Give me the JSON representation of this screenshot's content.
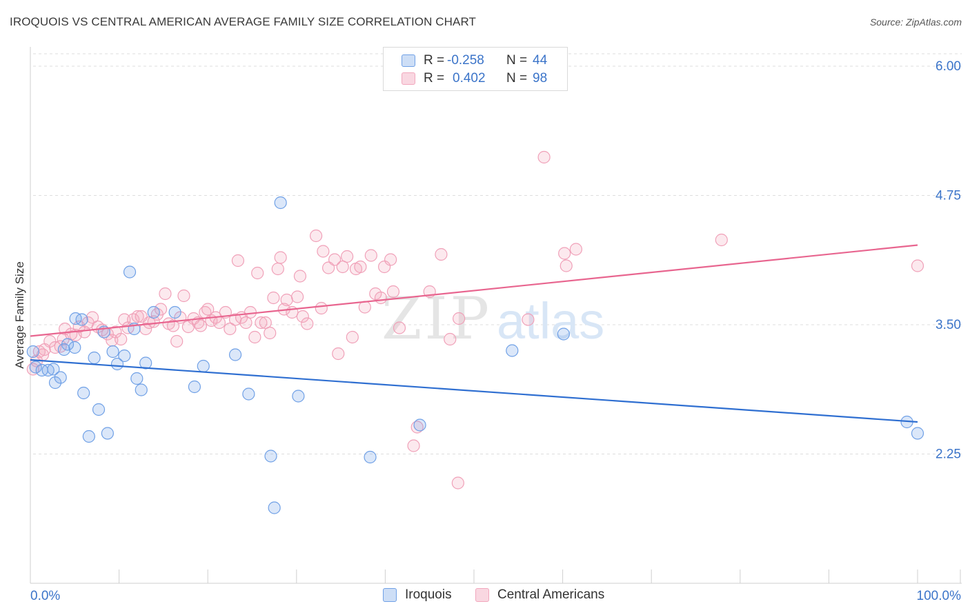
{
  "title": "IROQUOIS VS CENTRAL AMERICAN AVERAGE FAMILY SIZE CORRELATION CHART",
  "source": "Source: ZipAtlas.com",
  "watermark": {
    "zip": "ZIP",
    "atlas": "atlas"
  },
  "legend": {
    "r_label": "R =",
    "n_label": "N =",
    "rows": [
      {
        "r": "-0.258",
        "n": "44",
        "color": "#6fa0e6"
      },
      {
        "r": "0.402",
        "n": "98",
        "color": "#f2a7bd"
      }
    ]
  },
  "bottom_legend": [
    {
      "label": "Iroquois",
      "color": "#6fa0e6"
    },
    {
      "label": "Central Americans",
      "color": "#f2a7bd"
    }
  ],
  "chart_data": {
    "type": "scatter",
    "title": "IROQUOIS VS CENTRAL AMERICAN AVERAGE FAMILY SIZE CORRELATION CHART",
    "xlabel": "",
    "ylabel": "Average Family Size",
    "x_tick_labels": [
      "0.0%",
      "100.0%"
    ],
    "y_tick_labels": [
      "6.00",
      "4.75",
      "3.50",
      "2.25"
    ],
    "y_ticks": [
      6.0,
      4.75,
      3.5,
      2.25
    ],
    "xlim": [
      0,
      100
    ],
    "ylim": [
      1.0,
      6.12
    ],
    "grid": "horizontal dashed",
    "legend_position": "top-center",
    "series": [
      {
        "name": "Iroquois",
        "color": "#6fa0e6",
        "trend": {
          "x": [
            0,
            100
          ],
          "y": [
            3.16,
            2.56
          ]
        },
        "points": [
          {
            "x": 0.3,
            "y": 3.24
          },
          {
            "x": 0.6,
            "y": 3.09
          },
          {
            "x": 1.3,
            "y": 3.06
          },
          {
            "x": 2.0,
            "y": 3.06
          },
          {
            "x": 2.6,
            "y": 3.07
          },
          {
            "x": 2.8,
            "y": 2.94
          },
          {
            "x": 3.4,
            "y": 2.99
          },
          {
            "x": 3.8,
            "y": 3.26
          },
          {
            "x": 4.2,
            "y": 3.31
          },
          {
            "x": 5.0,
            "y": 3.28
          },
          {
            "x": 5.1,
            "y": 3.56
          },
          {
            "x": 5.8,
            "y": 3.55
          },
          {
            "x": 6.0,
            "y": 2.84
          },
          {
            "x": 6.6,
            "y": 2.42
          },
          {
            "x": 7.2,
            "y": 3.18
          },
          {
            "x": 7.7,
            "y": 2.68
          },
          {
            "x": 8.3,
            "y": 3.43
          },
          {
            "x": 8.7,
            "y": 2.45
          },
          {
            "x": 9.3,
            "y": 3.24
          },
          {
            "x": 9.8,
            "y": 3.12
          },
          {
            "x": 10.6,
            "y": 3.2
          },
          {
            "x": 11.2,
            "y": 4.01
          },
          {
            "x": 11.7,
            "y": 3.46
          },
          {
            "x": 12.0,
            "y": 2.98
          },
          {
            "x": 12.5,
            "y": 2.87
          },
          {
            "x": 13.0,
            "y": 3.13
          },
          {
            "x": 13.9,
            "y": 3.62
          },
          {
            "x": 16.3,
            "y": 3.62
          },
          {
            "x": 18.5,
            "y": 2.9
          },
          {
            "x": 19.5,
            "y": 3.1
          },
          {
            "x": 23.1,
            "y": 3.21
          },
          {
            "x": 24.6,
            "y": 2.83
          },
          {
            "x": 27.1,
            "y": 2.23
          },
          {
            "x": 27.5,
            "y": 1.73
          },
          {
            "x": 28.2,
            "y": 4.68
          },
          {
            "x": 30.2,
            "y": 2.81
          },
          {
            "x": 38.3,
            "y": 2.22
          },
          {
            "x": 43.9,
            "y": 2.53
          },
          {
            "x": 54.3,
            "y": 3.25
          },
          {
            "x": 60.1,
            "y": 3.41
          },
          {
            "x": 98.8,
            "y": 2.56
          },
          {
            "x": 100.0,
            "y": 2.45
          }
        ]
      },
      {
        "name": "Central Americans",
        "color": "#f2a7bd",
        "trend": {
          "x": [
            0,
            100
          ],
          "y": [
            3.39,
            4.27
          ]
        },
        "points": [
          {
            "x": 0.3,
            "y": 3.07
          },
          {
            "x": 0.7,
            "y": 3.15
          },
          {
            "x": 1.0,
            "y": 3.24
          },
          {
            "x": 1.4,
            "y": 3.21
          },
          {
            "x": 1.6,
            "y": 3.26
          },
          {
            "x": 2.2,
            "y": 3.34
          },
          {
            "x": 2.8,
            "y": 3.28
          },
          {
            "x": 3.4,
            "y": 3.29
          },
          {
            "x": 3.7,
            "y": 3.36
          },
          {
            "x": 3.9,
            "y": 3.46
          },
          {
            "x": 4.6,
            "y": 3.41
          },
          {
            "x": 5.1,
            "y": 3.4
          },
          {
            "x": 5.5,
            "y": 3.48
          },
          {
            "x": 6.1,
            "y": 3.43
          },
          {
            "x": 6.5,
            "y": 3.52
          },
          {
            "x": 7.0,
            "y": 3.57
          },
          {
            "x": 7.6,
            "y": 3.48
          },
          {
            "x": 8.1,
            "y": 3.45
          },
          {
            "x": 8.7,
            "y": 3.41
          },
          {
            "x": 9.2,
            "y": 3.35
          },
          {
            "x": 9.6,
            "y": 3.43
          },
          {
            "x": 10.2,
            "y": 3.36
          },
          {
            "x": 10.6,
            "y": 3.55
          },
          {
            "x": 11.0,
            "y": 3.47
          },
          {
            "x": 11.6,
            "y": 3.55
          },
          {
            "x": 12.1,
            "y": 3.58
          },
          {
            "x": 12.5,
            "y": 3.58
          },
          {
            "x": 13.0,
            "y": 3.46
          },
          {
            "x": 13.4,
            "y": 3.52
          },
          {
            "x": 13.9,
            "y": 3.53
          },
          {
            "x": 14.3,
            "y": 3.6
          },
          {
            "x": 14.7,
            "y": 3.65
          },
          {
            "x": 15.2,
            "y": 3.8
          },
          {
            "x": 15.6,
            "y": 3.51
          },
          {
            "x": 16.1,
            "y": 3.49
          },
          {
            "x": 16.5,
            "y": 3.34
          },
          {
            "x": 16.9,
            "y": 3.57
          },
          {
            "x": 17.3,
            "y": 3.78
          },
          {
            "x": 17.8,
            "y": 3.48
          },
          {
            "x": 18.4,
            "y": 3.56
          },
          {
            "x": 18.9,
            "y": 3.52
          },
          {
            "x": 19.2,
            "y": 3.49
          },
          {
            "x": 19.7,
            "y": 3.62
          },
          {
            "x": 20.0,
            "y": 3.65
          },
          {
            "x": 20.4,
            "y": 3.54
          },
          {
            "x": 20.9,
            "y": 3.57
          },
          {
            "x": 21.3,
            "y": 3.52
          },
          {
            "x": 22.0,
            "y": 3.62
          },
          {
            "x": 22.5,
            "y": 3.46
          },
          {
            "x": 23.1,
            "y": 3.55
          },
          {
            "x": 23.4,
            "y": 4.12
          },
          {
            "x": 23.8,
            "y": 3.57
          },
          {
            "x": 24.3,
            "y": 3.52
          },
          {
            "x": 24.8,
            "y": 3.62
          },
          {
            "x": 25.3,
            "y": 3.38
          },
          {
            "x": 25.6,
            "y": 4.0
          },
          {
            "x": 26.0,
            "y": 3.52
          },
          {
            "x": 26.5,
            "y": 3.52
          },
          {
            "x": 27.0,
            "y": 3.42
          },
          {
            "x": 27.4,
            "y": 3.76
          },
          {
            "x": 27.9,
            "y": 4.04
          },
          {
            "x": 28.2,
            "y": 4.15
          },
          {
            "x": 28.6,
            "y": 3.65
          },
          {
            "x": 28.9,
            "y": 3.74
          },
          {
            "x": 29.5,
            "y": 3.62
          },
          {
            "x": 30.1,
            "y": 3.77
          },
          {
            "x": 30.4,
            "y": 3.97
          },
          {
            "x": 30.7,
            "y": 3.58
          },
          {
            "x": 31.2,
            "y": 3.51
          },
          {
            "x": 32.2,
            "y": 4.36
          },
          {
            "x": 32.8,
            "y": 3.66
          },
          {
            "x": 33.0,
            "y": 4.21
          },
          {
            "x": 33.6,
            "y": 4.05
          },
          {
            "x": 34.3,
            "y": 4.13
          },
          {
            "x": 34.7,
            "y": 3.22
          },
          {
            "x": 35.2,
            "y": 4.06
          },
          {
            "x": 35.7,
            "y": 4.16
          },
          {
            "x": 36.3,
            "y": 3.38
          },
          {
            "x": 36.7,
            "y": 4.04
          },
          {
            "x": 37.2,
            "y": 4.06
          },
          {
            "x": 37.7,
            "y": 3.67
          },
          {
            "x": 38.4,
            "y": 4.17
          },
          {
            "x": 38.9,
            "y": 3.8
          },
          {
            "x": 39.5,
            "y": 3.76
          },
          {
            "x": 39.9,
            "y": 4.06
          },
          {
            "x": 40.6,
            "y": 4.13
          },
          {
            "x": 40.9,
            "y": 3.82
          },
          {
            "x": 41.6,
            "y": 3.47
          },
          {
            "x": 43.2,
            "y": 2.33
          },
          {
            "x": 43.6,
            "y": 2.51
          },
          {
            "x": 45.0,
            "y": 3.82
          },
          {
            "x": 46.3,
            "y": 4.18
          },
          {
            "x": 47.3,
            "y": 3.36
          },
          {
            "x": 48.2,
            "y": 1.97
          },
          {
            "x": 48.3,
            "y": 3.56
          },
          {
            "x": 56.1,
            "y": 3.55
          },
          {
            "x": 57.9,
            "y": 5.12
          },
          {
            "x": 60.2,
            "y": 4.19
          },
          {
            "x": 60.4,
            "y": 4.07
          },
          {
            "x": 61.5,
            "y": 4.23
          },
          {
            "x": 77.9,
            "y": 4.32
          },
          {
            "x": 100.0,
            "y": 4.07
          }
        ]
      }
    ]
  }
}
